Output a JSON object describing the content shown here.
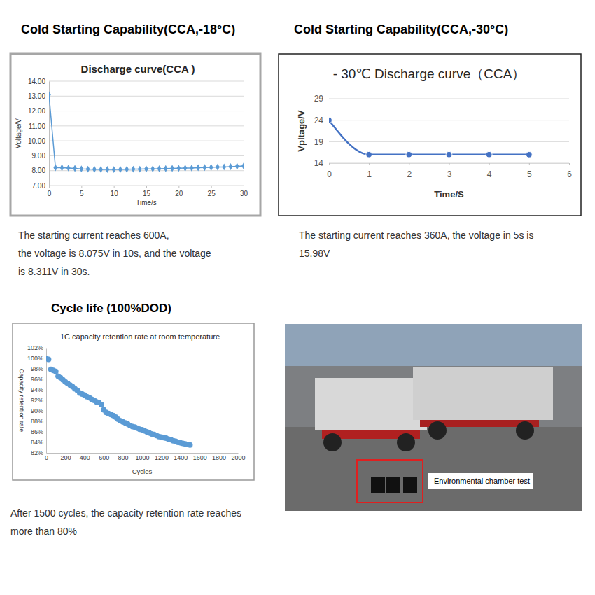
{
  "headings": [
    "Cold Starting Capability(CCA,-18°C)",
    "Cold Starting Capability(CCA,-30°C)",
    "Cycle life (100%DOD)"
  ],
  "captions": [
    [
      "The starting current reaches 600A,",
      "the voltage is 8.075V in 10s, and the voltage",
      "is 8.311V in 30s."
    ],
    [
      "The starting current reaches 360A, the voltage in 5s is",
      "15.98V"
    ],
    [
      "After 1500 cycles, the capacity retention rate reaches",
      "more than 80%"
    ]
  ],
  "photo": {
    "label": "Environmental chamber test"
  },
  "chart_data": [
    {
      "type": "line",
      "title": "Discharge curve(CCA )",
      "x_label": "Time/s",
      "y_label": "Voltage/V",
      "x": [
        0,
        1,
        2,
        3,
        4,
        5,
        6,
        7,
        8,
        9,
        10,
        11,
        12,
        13,
        14,
        15,
        16,
        17,
        18,
        19,
        20,
        21,
        22,
        23,
        24,
        25,
        26,
        27,
        28,
        29,
        30
      ],
      "values": [
        13.1,
        8.2,
        8.2,
        8.18,
        8.15,
        8.12,
        8.1,
        8.09,
        8.08,
        8.08,
        8.075,
        8.08,
        8.09,
        8.1,
        8.1,
        8.11,
        8.12,
        8.13,
        8.14,
        8.15,
        8.16,
        8.17,
        8.18,
        8.2,
        8.21,
        8.22,
        8.24,
        8.25,
        8.27,
        8.29,
        8.311
      ],
      "color": "#5b9bd5",
      "marker": "diamond",
      "line_style": "solid",
      "xlim": [
        0,
        30
      ],
      "xticks": [
        0,
        5,
        10,
        15,
        20,
        25,
        30
      ],
      "ylim": [
        7,
        14
      ],
      "yticks": [
        {
          "value": 7,
          "label": "7.00"
        },
        {
          "value": 8,
          "label": "8.00"
        },
        {
          "value": 9,
          "label": "9.00"
        },
        {
          "value": 10,
          "label": "10.00"
        },
        {
          "value": 11,
          "label": "11.00"
        },
        {
          "value": 12,
          "label": "12.00"
        },
        {
          "value": 13,
          "label": "13.00"
        },
        {
          "value": 14,
          "label": "14.00"
        }
      ],
      "grid": true
    },
    {
      "type": "line",
      "title": "- 30℃ Discharge curve（CCA）",
      "x_label": "Time/S",
      "y_label": "Vpltage/V",
      "x": [
        0,
        1,
        2,
        3,
        4,
        5
      ],
      "values": [
        24,
        16,
        16,
        16,
        16,
        15.98
      ],
      "color": "#4472c4",
      "marker": "circle",
      "line_style": "smooth",
      "xlim": [
        0,
        6
      ],
      "xticks": [
        0,
        1,
        2,
        3,
        4,
        5,
        6
      ],
      "ylim": [
        14,
        29
      ],
      "yticks": [
        14,
        19,
        24,
        29
      ],
      "grid": true
    },
    {
      "type": "scatter",
      "title": "1C capacity retention rate at room temperature",
      "x_label": "Cycles",
      "y_label": "Capacity retention rate",
      "x": [
        0,
        25,
        50,
        75,
        100,
        125,
        150,
        175,
        200,
        225,
        250,
        275,
        300,
        325,
        350,
        375,
        400,
        425,
        450,
        475,
        500,
        525,
        550,
        575,
        600,
        625,
        650,
        675,
        700,
        725,
        750,
        775,
        800,
        825,
        850,
        875,
        900,
        925,
        950,
        975,
        1000,
        1025,
        1050,
        1075,
        1100,
        1125,
        1150,
        1175,
        1200,
        1225,
        1250,
        1275,
        1300,
        1325,
        1350,
        1375,
        1400,
        1425,
        1450,
        1475,
        1500
      ],
      "values": [
        100.0,
        99.8,
        97.9,
        97.7,
        97.5,
        96.6,
        96.3,
        95.9,
        95.5,
        95.2,
        94.9,
        94.6,
        94.2,
        93.9,
        93.4,
        93.2,
        93.0,
        92.7,
        92.5,
        92.2,
        92.0,
        91.7,
        91.6,
        91.2,
        90.2,
        89.7,
        89.5,
        89.3,
        89.1,
        88.8,
        88.4,
        88.1,
        87.9,
        87.7,
        87.5,
        87.2,
        87.0,
        86.9,
        86.7,
        86.5,
        86.4,
        86.2,
        86.0,
        85.8,
        85.6,
        85.5,
        85.3,
        85.1,
        85.0,
        84.9,
        84.8,
        84.6,
        84.5,
        84.3,
        84.2,
        84.0,
        83.9,
        83.8,
        83.7,
        83.6,
        83.5
      ],
      "color": "#5b9bd5",
      "marker": "circle",
      "xlim": [
        0,
        2000
      ],
      "xticks": [
        0,
        200,
        400,
        600,
        800,
        1000,
        1200,
        1400,
        1600,
        1800,
        2000
      ],
      "ylim": [
        82,
        102
      ],
      "yticks": [
        {
          "value": 82,
          "label": "82%"
        },
        {
          "value": 84,
          "label": "84%"
        },
        {
          "value": 86,
          "label": "86%"
        },
        {
          "value": 88,
          "label": "88%"
        },
        {
          "value": 90,
          "label": "90%"
        },
        {
          "value": 92,
          "label": "92%"
        },
        {
          "value": 94,
          "label": "94%"
        },
        {
          "value": 96,
          "label": "96%"
        },
        {
          "value": 98,
          "label": "98%"
        },
        {
          "value": 100,
          "label": "100%"
        },
        {
          "value": 102,
          "label": "102%"
        }
      ],
      "grid": false
    }
  ]
}
